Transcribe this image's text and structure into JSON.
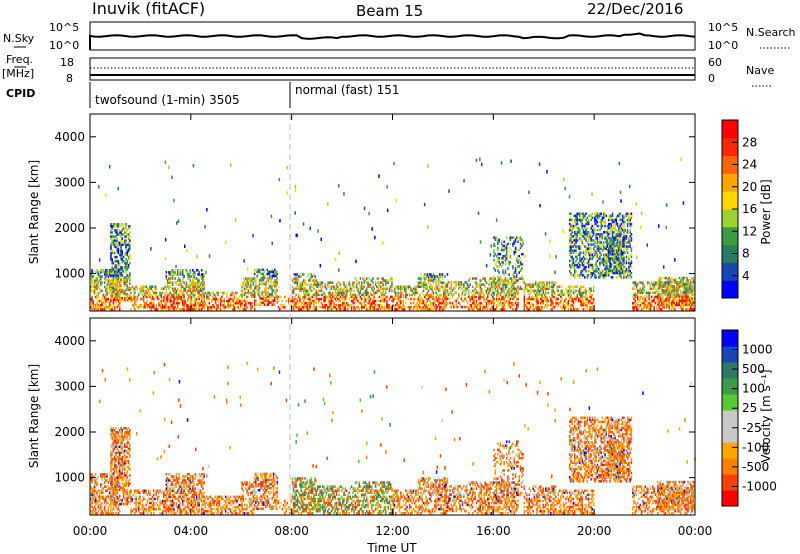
{
  "header": {
    "station": "Inuvik (fitACF)",
    "beam": "Beam 15",
    "date": "22/Dec/2016"
  },
  "left_labels": {
    "nsky": "N.Sky",
    "freq": "Freq.",
    "freq_unit": "[MHz]",
    "cpid": "CPID"
  },
  "right_labels": {
    "nsearch": "N.Search",
    "nave": "Nave"
  },
  "noise_axis": {
    "left_top": "10^5",
    "left_bottom": "10^0",
    "right_top": "10^5",
    "right_bottom": "10^0"
  },
  "freq_axis": {
    "left_top": "18",
    "left_bottom": "8",
    "right_top": "60",
    "right_bottom": "0"
  },
  "cpid_segments": [
    {
      "label": "twofsound (1-min) 3505",
      "start_hour": 0
    },
    {
      "label": "normal (fast) 151",
      "start_hour": 8
    }
  ],
  "colors": {
    "power": [
      "#0000ff",
      "#1a46b4",
      "#2d7a64",
      "#3c9b46",
      "#9bd232",
      "#ffd700",
      "#ffa500",
      "#ff6400",
      "#ff2800",
      "#ff0000"
    ],
    "velocity": [
      "#ff0000",
      "#ff4000",
      "#ff8000",
      "#ffa500",
      "#c8c8c8",
      "#c8c8c8",
      "#5ac832",
      "#3c9b46",
      "#2d7a64",
      "#1a46b4",
      "#0000ff"
    ]
  },
  "chart_data": [
    {
      "type": "heatmap",
      "name": "power",
      "ylabel": "Slant Range [km]",
      "yticks": [
        "1000",
        "2000",
        "3000",
        "4000"
      ],
      "ylim": [
        180,
        4500
      ],
      "xlim": [
        0,
        24
      ],
      "colorbar_label": "Power [dB]",
      "colorbar_ticks": [
        "4",
        "8",
        "12",
        "16",
        "20",
        "24",
        "28"
      ],
      "colorbar_range": [
        0,
        30
      ]
    },
    {
      "type": "heatmap",
      "name": "velocity",
      "ylabel": "Slant Range [km]",
      "yticks": [
        "1000",
        "2000",
        "3000",
        "4000"
      ],
      "ylim": [
        180,
        4500
      ],
      "xlim": [
        0,
        24
      ],
      "colorbar_label": "Velocity [m s⁻¹]",
      "colorbar_ticks": [
        "1000",
        "500",
        "100",
        "25",
        "-25",
        "-100",
        "-500",
        "-1000"
      ]
    }
  ],
  "x_axis": {
    "title": "Time UT",
    "ticks": [
      "00:00",
      "04:00",
      "08:00",
      "12:00",
      "16:00",
      "20:00",
      "00:00"
    ]
  }
}
